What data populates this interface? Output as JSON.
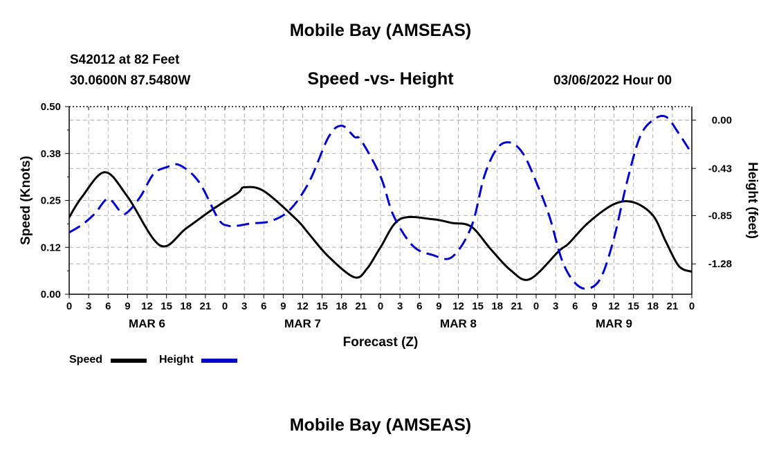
{
  "header": {
    "title": "Mobile Bay (AMSEAS)",
    "station": "S42012 at 82 Feet",
    "coords": "30.0600N  87.5480W",
    "chart_title": "Speed -vs- Height",
    "date": "03/06/2022 Hour 00"
  },
  "footer": {
    "title": "Mobile Bay (AMSEAS)"
  },
  "legend": {
    "speed": "Speed",
    "height": "Height"
  },
  "colors": {
    "speed": "#000000",
    "height": "#0000cc",
    "grid": "#b0b0b0"
  },
  "chart_data": {
    "type": "line",
    "xlabel": "Forecast (Z)",
    "ylabel_left": "Speed (Knots)",
    "ylabel_right": "Height (feet)",
    "xlim": [
      0,
      96
    ],
    "ylim_left": [
      0.0,
      0.5
    ],
    "ylim_right": [
      -1.55,
      0.12
    ],
    "yticks_left": [
      "0.00",
      "0.12",
      "0.25",
      "0.38",
      "0.50"
    ],
    "yticks_left_values": [
      0.0,
      0.125,
      0.25,
      0.375,
      0.5
    ],
    "yticks_right": [
      "0.00",
      "-0.43",
      "-0.85",
      "-1.28"
    ],
    "yticks_right_values": [
      0.0,
      -0.43,
      -0.85,
      -1.28
    ],
    "xtick_labels": [
      "0",
      "3",
      "6",
      "9",
      "12",
      "15",
      "18",
      "21",
      "0",
      "3",
      "6",
      "9",
      "12",
      "15",
      "18",
      "21",
      "0",
      "3",
      "6",
      "9",
      "12",
      "15",
      "18",
      "21",
      "0",
      "3",
      "6",
      "9",
      "12",
      "15",
      "18",
      "21",
      "0"
    ],
    "day_labels": [
      {
        "label": "MAR 6",
        "hour": 12
      },
      {
        "label": "MAR 7",
        "hour": 36
      },
      {
        "label": "MAR 8",
        "hour": 60
      },
      {
        "label": "MAR 9",
        "hour": 84
      }
    ],
    "series": [
      {
        "name": "Speed",
        "style": "solid",
        "x": [
          0,
          2,
          5.5,
          9,
          14,
          18,
          22,
          26,
          27,
          30,
          35,
          37,
          40,
          44,
          46,
          48,
          51,
          56,
          59,
          62,
          65,
          68,
          71,
          75.5,
          77,
          80,
          84,
          87,
          90,
          92,
          94,
          96
        ],
        "values": [
          0.205,
          0.26,
          0.325,
          0.26,
          0.13,
          0.175,
          0.225,
          0.27,
          0.285,
          0.275,
          0.2,
          0.16,
          0.1,
          0.045,
          0.07,
          0.125,
          0.2,
          0.2,
          0.19,
          0.18,
          0.12,
          0.065,
          0.04,
          0.115,
          0.135,
          0.19,
          0.24,
          0.245,
          0.21,
          0.14,
          0.075,
          0.06
        ]
      },
      {
        "name": "Height",
        "style": "dashed",
        "x": [
          0,
          2,
          4,
          6,
          8,
          9,
          11,
          13,
          15,
          17,
          20,
          23,
          24.5,
          26,
          28,
          31,
          34,
          37,
          40,
          42,
          44,
          45,
          48,
          50,
          53,
          56,
          59,
          62,
          64,
          66,
          68,
          70,
          72,
          74,
          76,
          78,
          80,
          82,
          84,
          86,
          88,
          90,
          92,
          94,
          96
        ],
        "values": [
          -1.0,
          -0.93,
          -0.83,
          -0.7,
          -0.82,
          -0.82,
          -0.68,
          -0.48,
          -0.42,
          -0.4,
          -0.55,
          -0.88,
          -0.94,
          -0.94,
          -0.92,
          -0.9,
          -0.8,
          -0.55,
          -0.15,
          -0.05,
          -0.15,
          -0.18,
          -0.5,
          -0.85,
          -1.12,
          -1.2,
          -1.22,
          -0.95,
          -0.5,
          -0.25,
          -0.2,
          -0.3,
          -0.55,
          -0.85,
          -1.25,
          -1.45,
          -1.5,
          -1.4,
          -1.05,
          -0.55,
          -0.15,
          0.0,
          0.03,
          -0.12,
          -0.3
        ]
      }
    ]
  }
}
